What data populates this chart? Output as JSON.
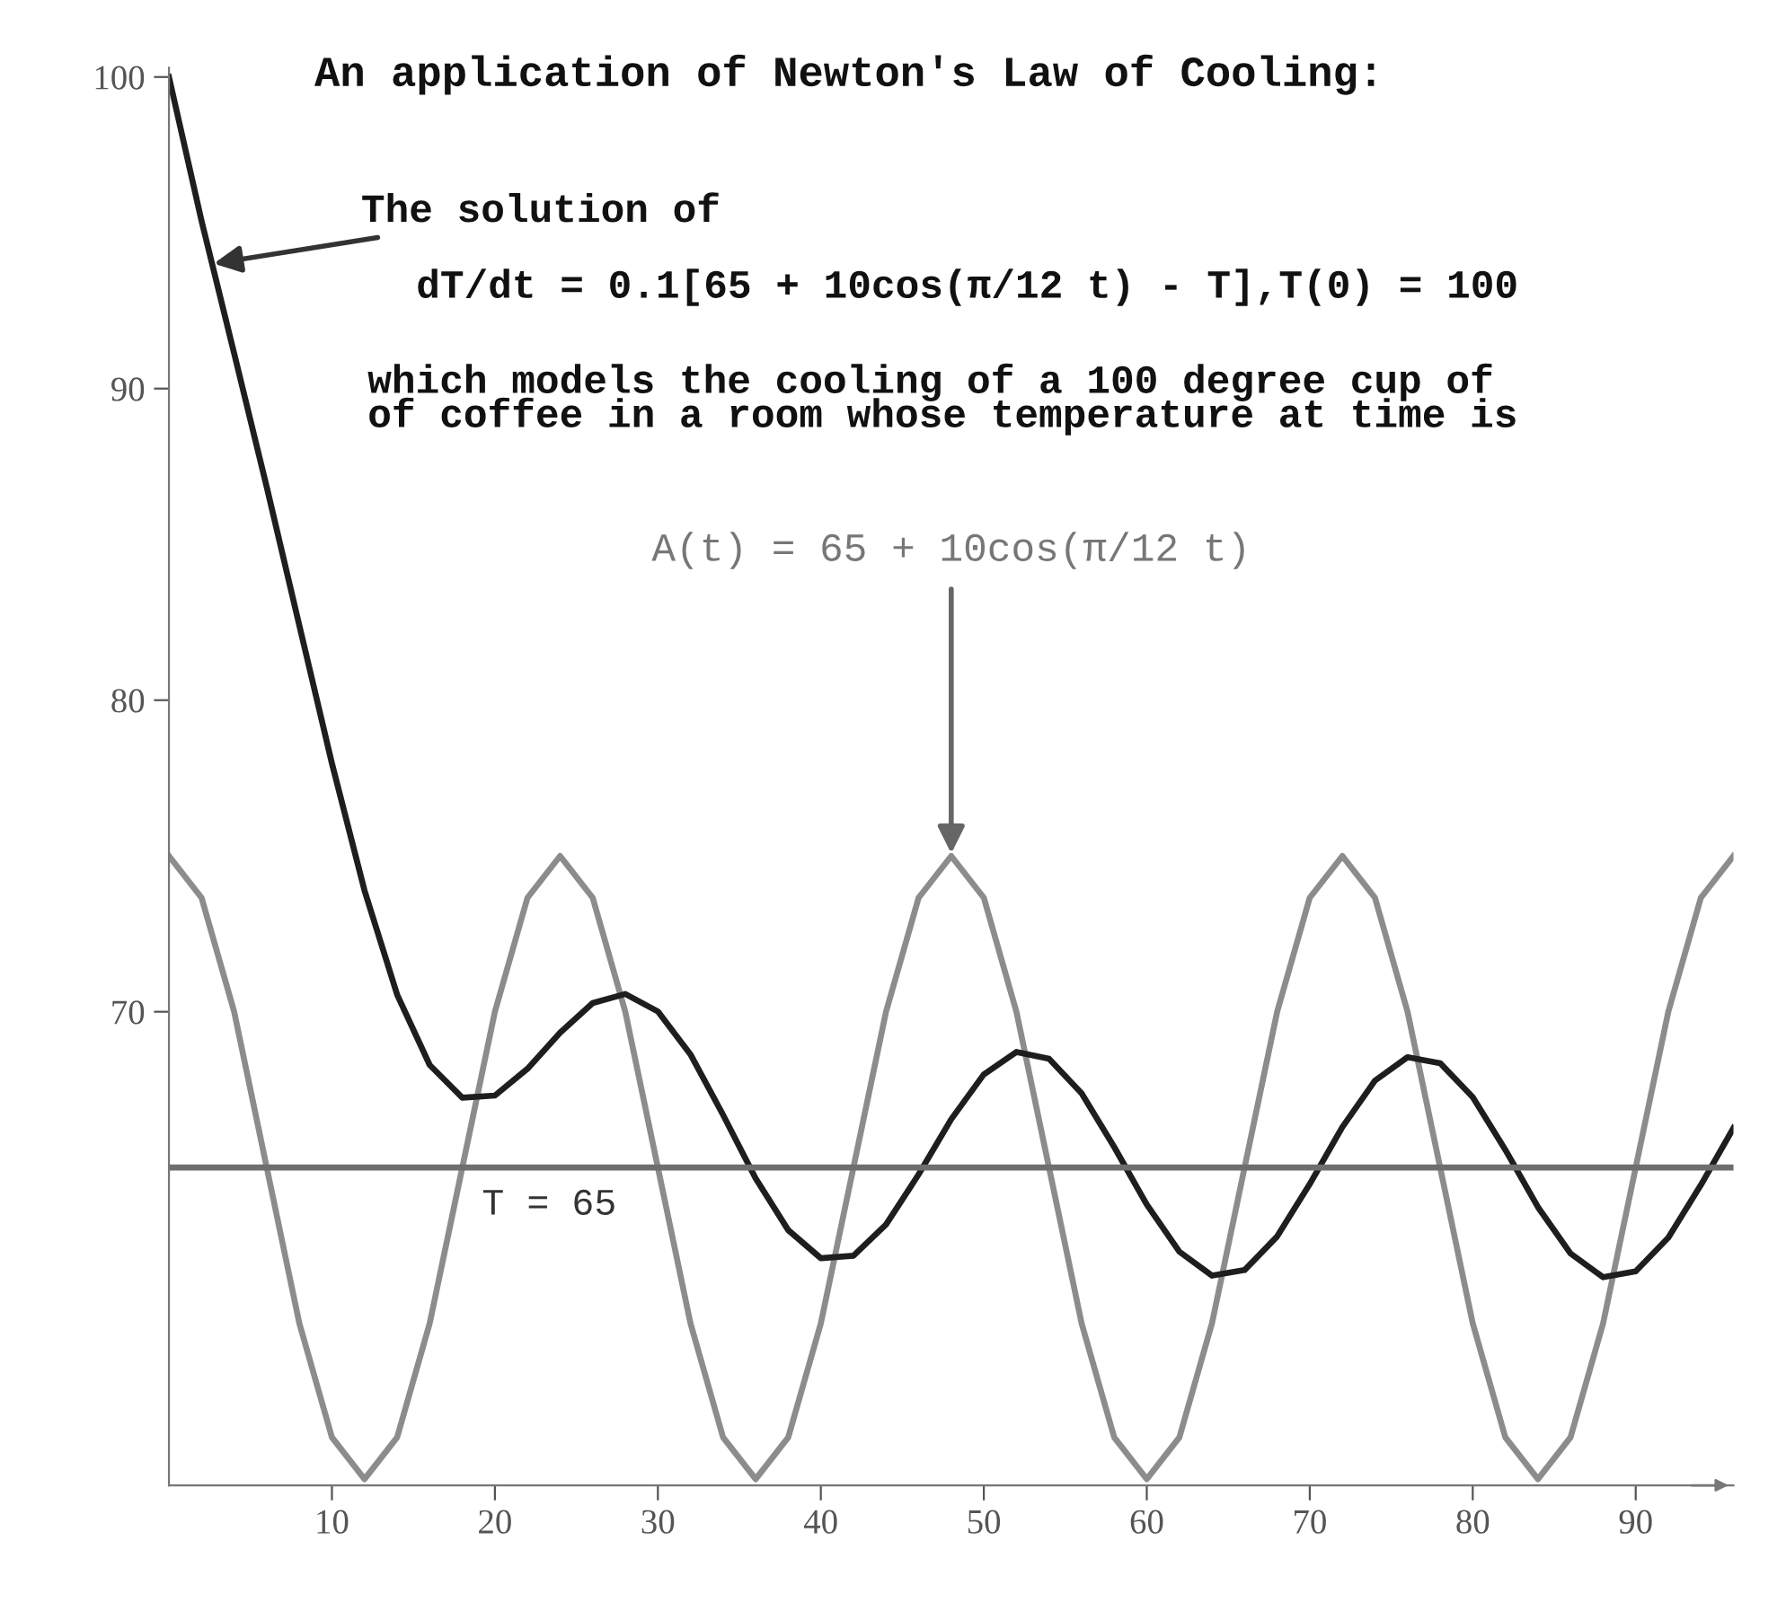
{
  "chart_data": {
    "type": "line",
    "title": "An application of Newton's Law of Cooling:",
    "x": [
      0,
      2,
      4,
      6,
      8,
      10,
      12,
      14,
      16,
      18,
      20,
      22,
      24,
      26,
      28,
      30,
      32,
      34,
      36,
      38,
      40,
      42,
      44,
      46,
      48,
      50,
      52,
      54,
      56,
      58,
      60,
      62,
      64,
      66,
      68,
      70,
      72,
      74,
      76,
      78,
      80,
      82,
      84,
      86,
      88,
      90,
      92,
      94,
      96
    ],
    "series": [
      {
        "color": "#8c8c8c",
        "values": [
          75,
          73.66,
          70,
          65,
          60,
          56.34,
          55,
          56.34,
          60,
          65,
          70,
          73.66,
          75,
          73.66,
          70,
          65,
          60,
          56.34,
          55,
          56.34,
          60,
          65,
          70,
          73.66,
          75,
          73.66,
          70,
          65,
          60,
          56.34,
          55,
          56.34,
          60,
          65,
          70,
          73.66,
          75,
          73.66,
          70,
          65,
          60,
          56.34,
          55,
          56.34,
          60,
          65,
          70,
          73.66,
          75
        ]
      },
      {
        "color": "#1e1e1e",
        "values": [
          100.0,
          95.38,
          91.13,
          86.84,
          82.4,
          77.97,
          73.89,
          70.55,
          68.29,
          67.24,
          67.31,
          68.17,
          69.33,
          70.28,
          70.57,
          70.01,
          68.63,
          66.69,
          64.65,
          62.99,
          62.09,
          62.17,
          63.17,
          64.78,
          66.55,
          67.99,
          68.71,
          68.49,
          67.38,
          65.66,
          63.81,
          62.3,
          61.53,
          61.71,
          62.79,
          64.47,
          66.3,
          67.79,
          68.54,
          68.35,
          67.26,
          65.57,
          63.73,
          62.24,
          61.48,
          61.67,
          62.75,
          64.44,
          66.27
        ]
      }
    ],
    "xlim": [
      0,
      96
    ],
    "ylim": [
      54.8,
      100.3
    ],
    "xticks": [
      10,
      20,
      30,
      40,
      50,
      60,
      70,
      80,
      90
    ],
    "yticks": [
      70,
      80,
      90,
      100
    ],
    "ref_lines": [
      {
        "axis": "y",
        "value": 65,
        "label": "T = 65",
        "color": "#6e6e6e"
      }
    ],
    "annotations": [
      {
        "text": "The solution of",
        "x": 2.6,
        "y": 94
      },
      "dT/dt = 0.1[65 + 10cos(π/12 t) - T],T(0) = 100",
      "which models the cooling of a 100 degree cup of",
      "of coffee in a room whose temperature at time is",
      {
        "text": "A(t) = 65 + 10cos(π/12 t)",
        "x": 48,
        "y": 75
      }
    ],
    "grid": false,
    "legend": false,
    "marker": "none",
    "line_style": "solid"
  }
}
